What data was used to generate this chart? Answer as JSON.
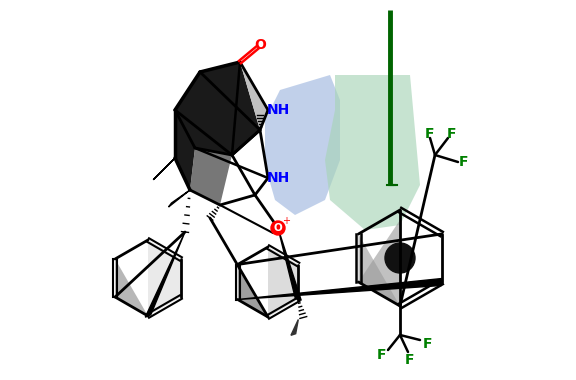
{
  "bg_color": "#ffffff",
  "colors": {
    "O": "#ff0000",
    "N": "#0000ff",
    "F": "#008000",
    "C": "#000000",
    "bond": "#000000",
    "green_line": "#006400",
    "light_blue": "#a0b8e0",
    "light_green": "#a8d4b8",
    "gray_fill": "#808080",
    "dark_fill": "#202020"
  },
  "figsize": [
    5.76,
    3.8
  ],
  "dpi": 100
}
